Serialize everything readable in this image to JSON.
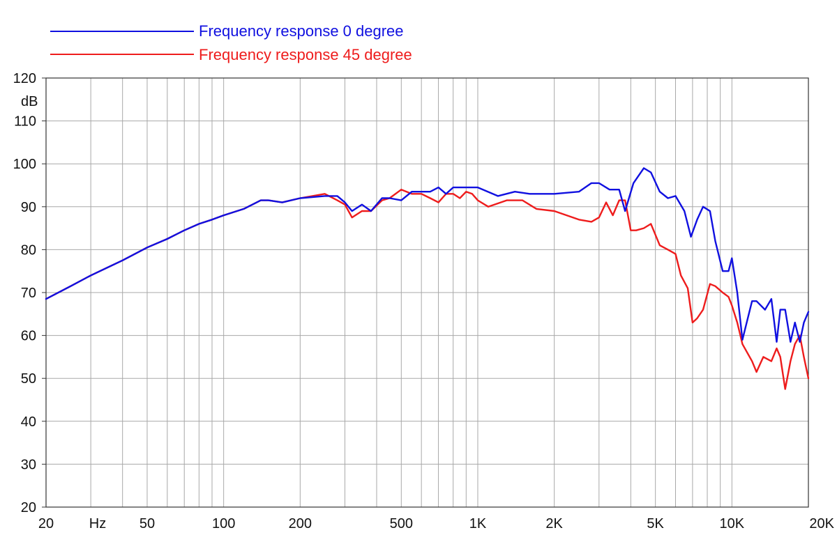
{
  "chart_data": {
    "type": "line",
    "xscale": "log",
    "xlim": [
      20,
      20000
    ],
    "ylim": [
      20,
      120
    ],
    "ylabel": "dB",
    "xunit": "Hz",
    "grid": true,
    "legend_position": "top-left",
    "yticks": [
      "20",
      "30",
      "40",
      "50",
      "60",
      "70",
      "80",
      "90",
      "100",
      "110",
      "120"
    ],
    "xticks": [
      {
        "value": 20,
        "label": "20"
      },
      {
        "value": 50,
        "label": "50"
      },
      {
        "value": 100,
        "label": "100"
      },
      {
        "value": 200,
        "label": "200"
      },
      {
        "value": 500,
        "label": "500"
      },
      {
        "value": 1000,
        "label": "1K"
      },
      {
        "value": 2000,
        "label": "2K"
      },
      {
        "value": 5000,
        "label": "5K"
      },
      {
        "value": 10000,
        "label": "10K"
      },
      {
        "value": 20000,
        "label": "20K"
      }
    ],
    "series": [
      {
        "name": "Frequency response 0 degree",
        "color": "#1010e0",
        "x": [
          20,
          25,
          30,
          40,
          50,
          60,
          70,
          80,
          90,
          100,
          120,
          140,
          150,
          170,
          200,
          250,
          280,
          300,
          320,
          350,
          380,
          420,
          450,
          500,
          550,
          600,
          650,
          700,
          750,
          800,
          900,
          1000,
          1200,
          1400,
          1600,
          1800,
          2000,
          2500,
          2800,
          3000,
          3300,
          3600,
          3800,
          4100,
          4500,
          4800,
          5200,
          5600,
          6000,
          6500,
          6900,
          7300,
          7700,
          8200,
          8600,
          9200,
          9700,
          10000,
          10500,
          11000,
          12000,
          12500,
          13500,
          14300,
          15000,
          15500,
          16200,
          17000,
          17700,
          18500,
          19200,
          20000
        ],
        "values": [
          68.5,
          71.5,
          74,
          77.5,
          80.5,
          82.5,
          84.5,
          86,
          87,
          88,
          89.5,
          91.5,
          91.5,
          91,
          92,
          92.5,
          92.5,
          91,
          89,
          90.5,
          89,
          92,
          92,
          91.5,
          93.5,
          93.5,
          93.5,
          94.5,
          93,
          94.5,
          94.5,
          94.5,
          92.5,
          93.5,
          93,
          93,
          93,
          93.5,
          95.5,
          95.5,
          94,
          94,
          89,
          95.5,
          99,
          98,
          93.5,
          92,
          92.5,
          89,
          83,
          87,
          90,
          89,
          82,
          75,
          75,
          78,
          70,
          59,
          68,
          68,
          66,
          68.5,
          58.5,
          66,
          66,
          58.5,
          63,
          58.5,
          63,
          65.5
        ]
      },
      {
        "name": "Frequency response 45 degree",
        "color": "#ee1c1c",
        "x": [
          20,
          25,
          30,
          40,
          50,
          60,
          70,
          80,
          90,
          100,
          120,
          140,
          150,
          170,
          200,
          250,
          280,
          300,
          320,
          350,
          380,
          420,
          450,
          500,
          550,
          600,
          650,
          700,
          750,
          800,
          850,
          900,
          950,
          1000,
          1100,
          1300,
          1500,
          1700,
          2000,
          2500,
          2800,
          3000,
          3200,
          3400,
          3600,
          3800,
          4000,
          4200,
          4500,
          4800,
          5200,
          5600,
          6000,
          6300,
          6700,
          7000,
          7300,
          7700,
          8200,
          8600,
          9200,
          9700,
          10000,
          10500,
          11000,
          12000,
          12500,
          13300,
          14300,
          15000,
          15500,
          16200,
          17000,
          17700,
          18500,
          19200,
          20000
        ],
        "values": [
          68.5,
          71.5,
          74,
          77.5,
          80.5,
          82.5,
          84.5,
          86,
          87,
          88,
          89.5,
          91.5,
          91.5,
          91,
          92,
          93,
          91.5,
          90.5,
          87.5,
          89,
          89,
          91.5,
          92,
          94,
          93,
          93,
          92,
          91,
          93,
          93,
          92,
          93.5,
          93,
          91.5,
          90,
          91.5,
          91.5,
          89.5,
          89,
          87,
          86.5,
          87.5,
          91,
          88,
          91.5,
          91.5,
          84.5,
          84.5,
          85,
          86,
          81,
          80,
          79,
          74,
          71,
          63,
          64,
          66,
          72,
          71.5,
          70,
          69,
          67,
          63,
          58,
          54,
          51.5,
          55,
          54,
          57,
          55,
          47.5,
          54,
          58,
          60,
          55,
          50
        ]
      }
    ]
  }
}
